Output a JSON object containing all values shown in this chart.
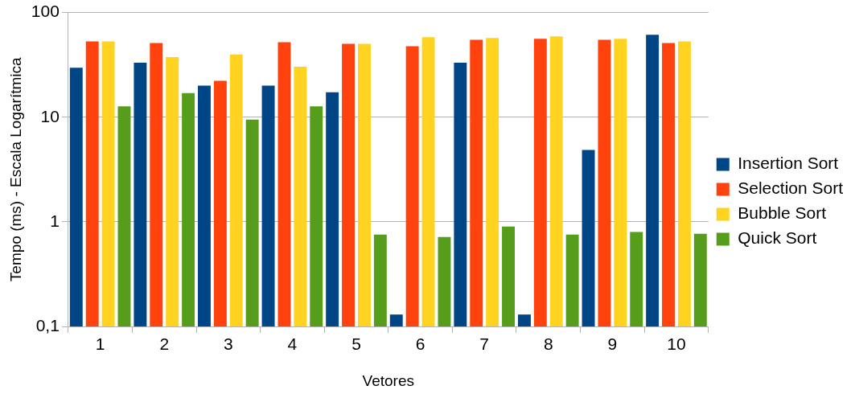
{
  "chart_data": {
    "type": "bar",
    "xlabel": "Vetores",
    "ylabel": "Tempo (ms) - Escala Logarítmica",
    "categories": [
      "1",
      "2",
      "3",
      "4",
      "5",
      "6",
      "7",
      "8",
      "9",
      "10"
    ],
    "series": [
      {
        "name": "Insertion Sort",
        "color": "#004586",
        "values": [
          29.7,
          33.1,
          20.0,
          20.0,
          17.3,
          0.13,
          33.1,
          0.13,
          4.87,
          61.3
        ]
      },
      {
        "name": "Selection Sort",
        "color": "#ff420e",
        "values": [
          53,
          51.2,
          22.3,
          52.1,
          50.2,
          47.6,
          55.0,
          56.0,
          55.0,
          51.2
        ]
      },
      {
        "name": "Bubble Sort",
        "color": "#ffd320",
        "values": [
          53,
          37.6,
          39.7,
          30.3,
          50.2,
          58.1,
          57.0,
          59.1,
          56.0,
          53.0
        ]
      },
      {
        "name": "Quick Sort",
        "color": "#579d1c",
        "values": [
          12.7,
          17.0,
          9.5,
          12.7,
          0.755,
          0.715,
          0.9,
          0.755,
          0.8,
          0.77
        ]
      }
    ],
    "log": true,
    "ylim": [
      0.1,
      100
    ],
    "yticks": [
      {
        "value": 0.1,
        "label": "0,1"
      },
      1,
      10,
      100
    ],
    "grid": "y",
    "legend": "right"
  }
}
